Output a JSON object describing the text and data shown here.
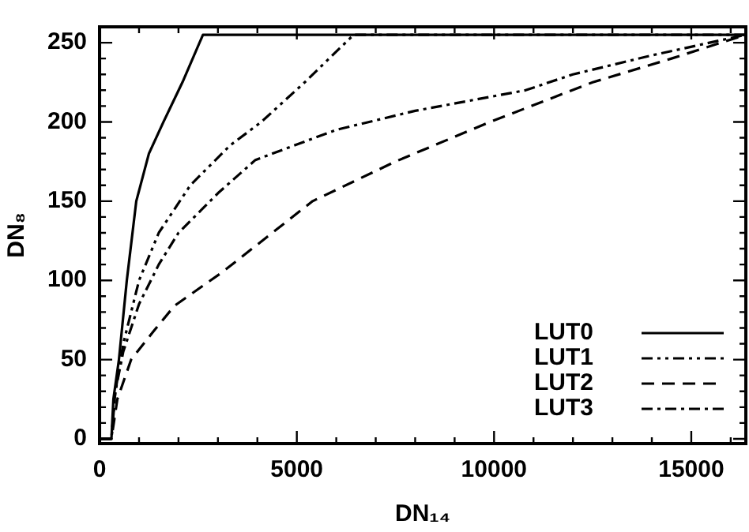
{
  "chart_data": {
    "type": "line",
    "xlabel": "DN₁₄",
    "ylabel": "DN₈",
    "xlim": [
      0,
      16383
    ],
    "ylim": [
      -3,
      260
    ],
    "xticks": [
      0,
      {
        "value": 1000,
        "label": null
      },
      {
        "value": 2000,
        "label": null
      },
      {
        "value": 3000,
        "label": null
      },
      {
        "value": 4000,
        "label": null
      },
      5000,
      {
        "value": 6000,
        "label": null
      },
      {
        "value": 7000,
        "label": null
      },
      {
        "value": 8000,
        "label": null
      },
      {
        "value": 9000,
        "label": null
      },
      10000,
      {
        "value": 11000,
        "label": null
      },
      {
        "value": 12000,
        "label": null
      },
      {
        "value": 13000,
        "label": null
      },
      {
        "value": 14000,
        "label": null
      },
      15000,
      {
        "value": 16000,
        "label": null
      }
    ],
    "yticks": [
      0,
      {
        "value": 10,
        "label": null
      },
      {
        "value": 20,
        "label": null
      },
      {
        "value": 30,
        "label": null
      },
      {
        "value": 40,
        "label": null
      },
      50,
      {
        "value": 60,
        "label": null
      },
      {
        "value": 70,
        "label": null
      },
      {
        "value": 80,
        "label": null
      },
      {
        "value": 90,
        "label": null
      },
      100,
      {
        "value": 110,
        "label": null
      },
      {
        "value": 120,
        "label": null
      },
      {
        "value": 130,
        "label": null
      },
      {
        "value": 140,
        "label": null
      },
      150,
      {
        "value": 160,
        "label": null
      },
      {
        "value": 170,
        "label": null
      },
      {
        "value": 180,
        "label": null
      },
      {
        "value": 190,
        "label": null
      },
      200,
      {
        "value": 210,
        "label": null
      },
      {
        "value": 220,
        "label": null
      },
      {
        "value": 230,
        "label": null
      },
      {
        "value": 240,
        "label": null
      },
      250
    ],
    "grid": false,
    "legend": "bottom right",
    "marker": "none",
    "series": [
      {
        "name": "LUT0",
        "color": "#000000",
        "line_style": "solid",
        "x": [
          0,
          300,
          350,
          490,
          690,
          930,
          1250,
          1620,
          2100,
          2620,
          16383
        ],
        "values": [
          0,
          0,
          25,
          50,
          100,
          150,
          180,
          200,
          225,
          255,
          255
        ]
      },
      {
        "name": "LUT1",
        "color": "#000000",
        "line_style": "dashdotdot",
        "x": [
          0,
          300,
          400,
          600,
          1000,
          1500,
          2300,
          3300,
          4100,
          5200,
          6440,
          16383
        ],
        "values": [
          0,
          0,
          30,
          60,
          100,
          130,
          160,
          185,
          200,
          225,
          255,
          255
        ]
      },
      {
        "name": "LUT2",
        "color": "#000000",
        "line_style": "dashed",
        "x": [
          0,
          300,
          450,
          800,
          1370,
          1900,
          3100,
          5400,
          7500,
          9900,
          12500,
          14500,
          16383
        ],
        "values": [
          0,
          0,
          25,
          50,
          68,
          84,
          105,
          150,
          175,
          200,
          225,
          240,
          255
        ]
      },
      {
        "name": "LUT3",
        "color": "#000000",
        "line_style": "dashdot",
        "x": [
          0,
          300,
          400,
          600,
          1000,
          1500,
          2000,
          3000,
          3950,
          6000,
          8000,
          10800,
          12000,
          14000,
          16383
        ],
        "values": [
          0,
          0,
          30,
          55,
          85,
          110,
          130,
          155,
          176,
          195,
          207,
          220,
          230,
          242,
          255
        ]
      }
    ]
  }
}
